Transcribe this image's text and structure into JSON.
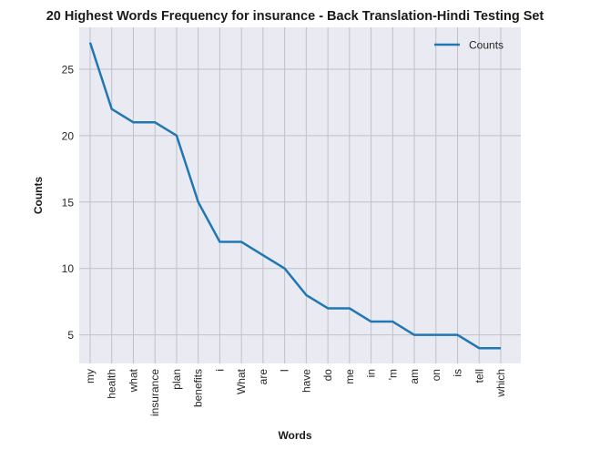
{
  "chart_data": {
    "type": "line",
    "title": "20 Highest Words Frequency for insurance - Back Translation-Hindi Testing Set",
    "xlabel": "Words",
    "ylabel": "Counts",
    "categories": [
      "my",
      "health",
      "what",
      "insurance",
      "plan",
      "benefits",
      "i",
      "What",
      "are",
      "I",
      "have",
      "do",
      "me",
      "in",
      "'m",
      "am",
      "on",
      "is",
      "tell",
      "which"
    ],
    "series": [
      {
        "name": "Counts",
        "color": "#1f77b4",
        "values": [
          27,
          22,
          21,
          21,
          20,
          15,
          12,
          12,
          11,
          10,
          8,
          7,
          7,
          6,
          6,
          5,
          5,
          5,
          4,
          4
        ]
      }
    ],
    "yticks": [
      5,
      10,
      15,
      20,
      25
    ],
    "ylim": [
      2.85,
      28.15
    ],
    "grid": true,
    "legend_position": "top-right",
    "background_color": "#eaeaf2",
    "grid_color": "#c0c0c8"
  }
}
